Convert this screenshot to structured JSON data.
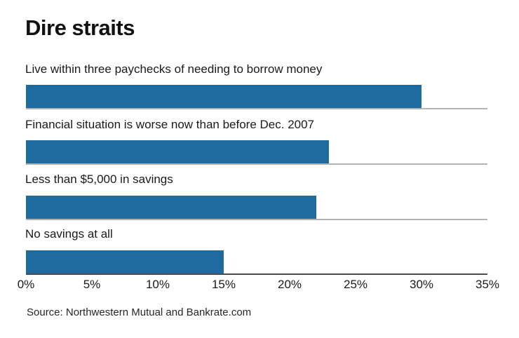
{
  "chart": {
    "title": "Dire straits",
    "source": "Source: Northwestern Mutual and Bankrate.com"
  },
  "chart_data": {
    "type": "bar",
    "orientation": "horizontal",
    "title": "Dire straits",
    "categories": [
      "Live within three paychecks of needing to borrow money",
      "Financial situation is worse now than before Dec. 2007",
      "Less than $5,000 in savings",
      "No savings at all"
    ],
    "values": [
      30,
      23,
      22,
      15
    ],
    "unit": "%",
    "x_ticks": [
      "0%",
      "5%",
      "10%",
      "15%",
      "20%",
      "25%",
      "30%",
      "35%"
    ],
    "xlim": [
      0,
      35
    ],
    "xlabel": "",
    "ylabel": "",
    "grid": "horizontal separators under each bar",
    "legend": "none",
    "bar_color": "#1f6a9e",
    "source": "Source: Northwestern Mutual and Bankrate.com"
  }
}
